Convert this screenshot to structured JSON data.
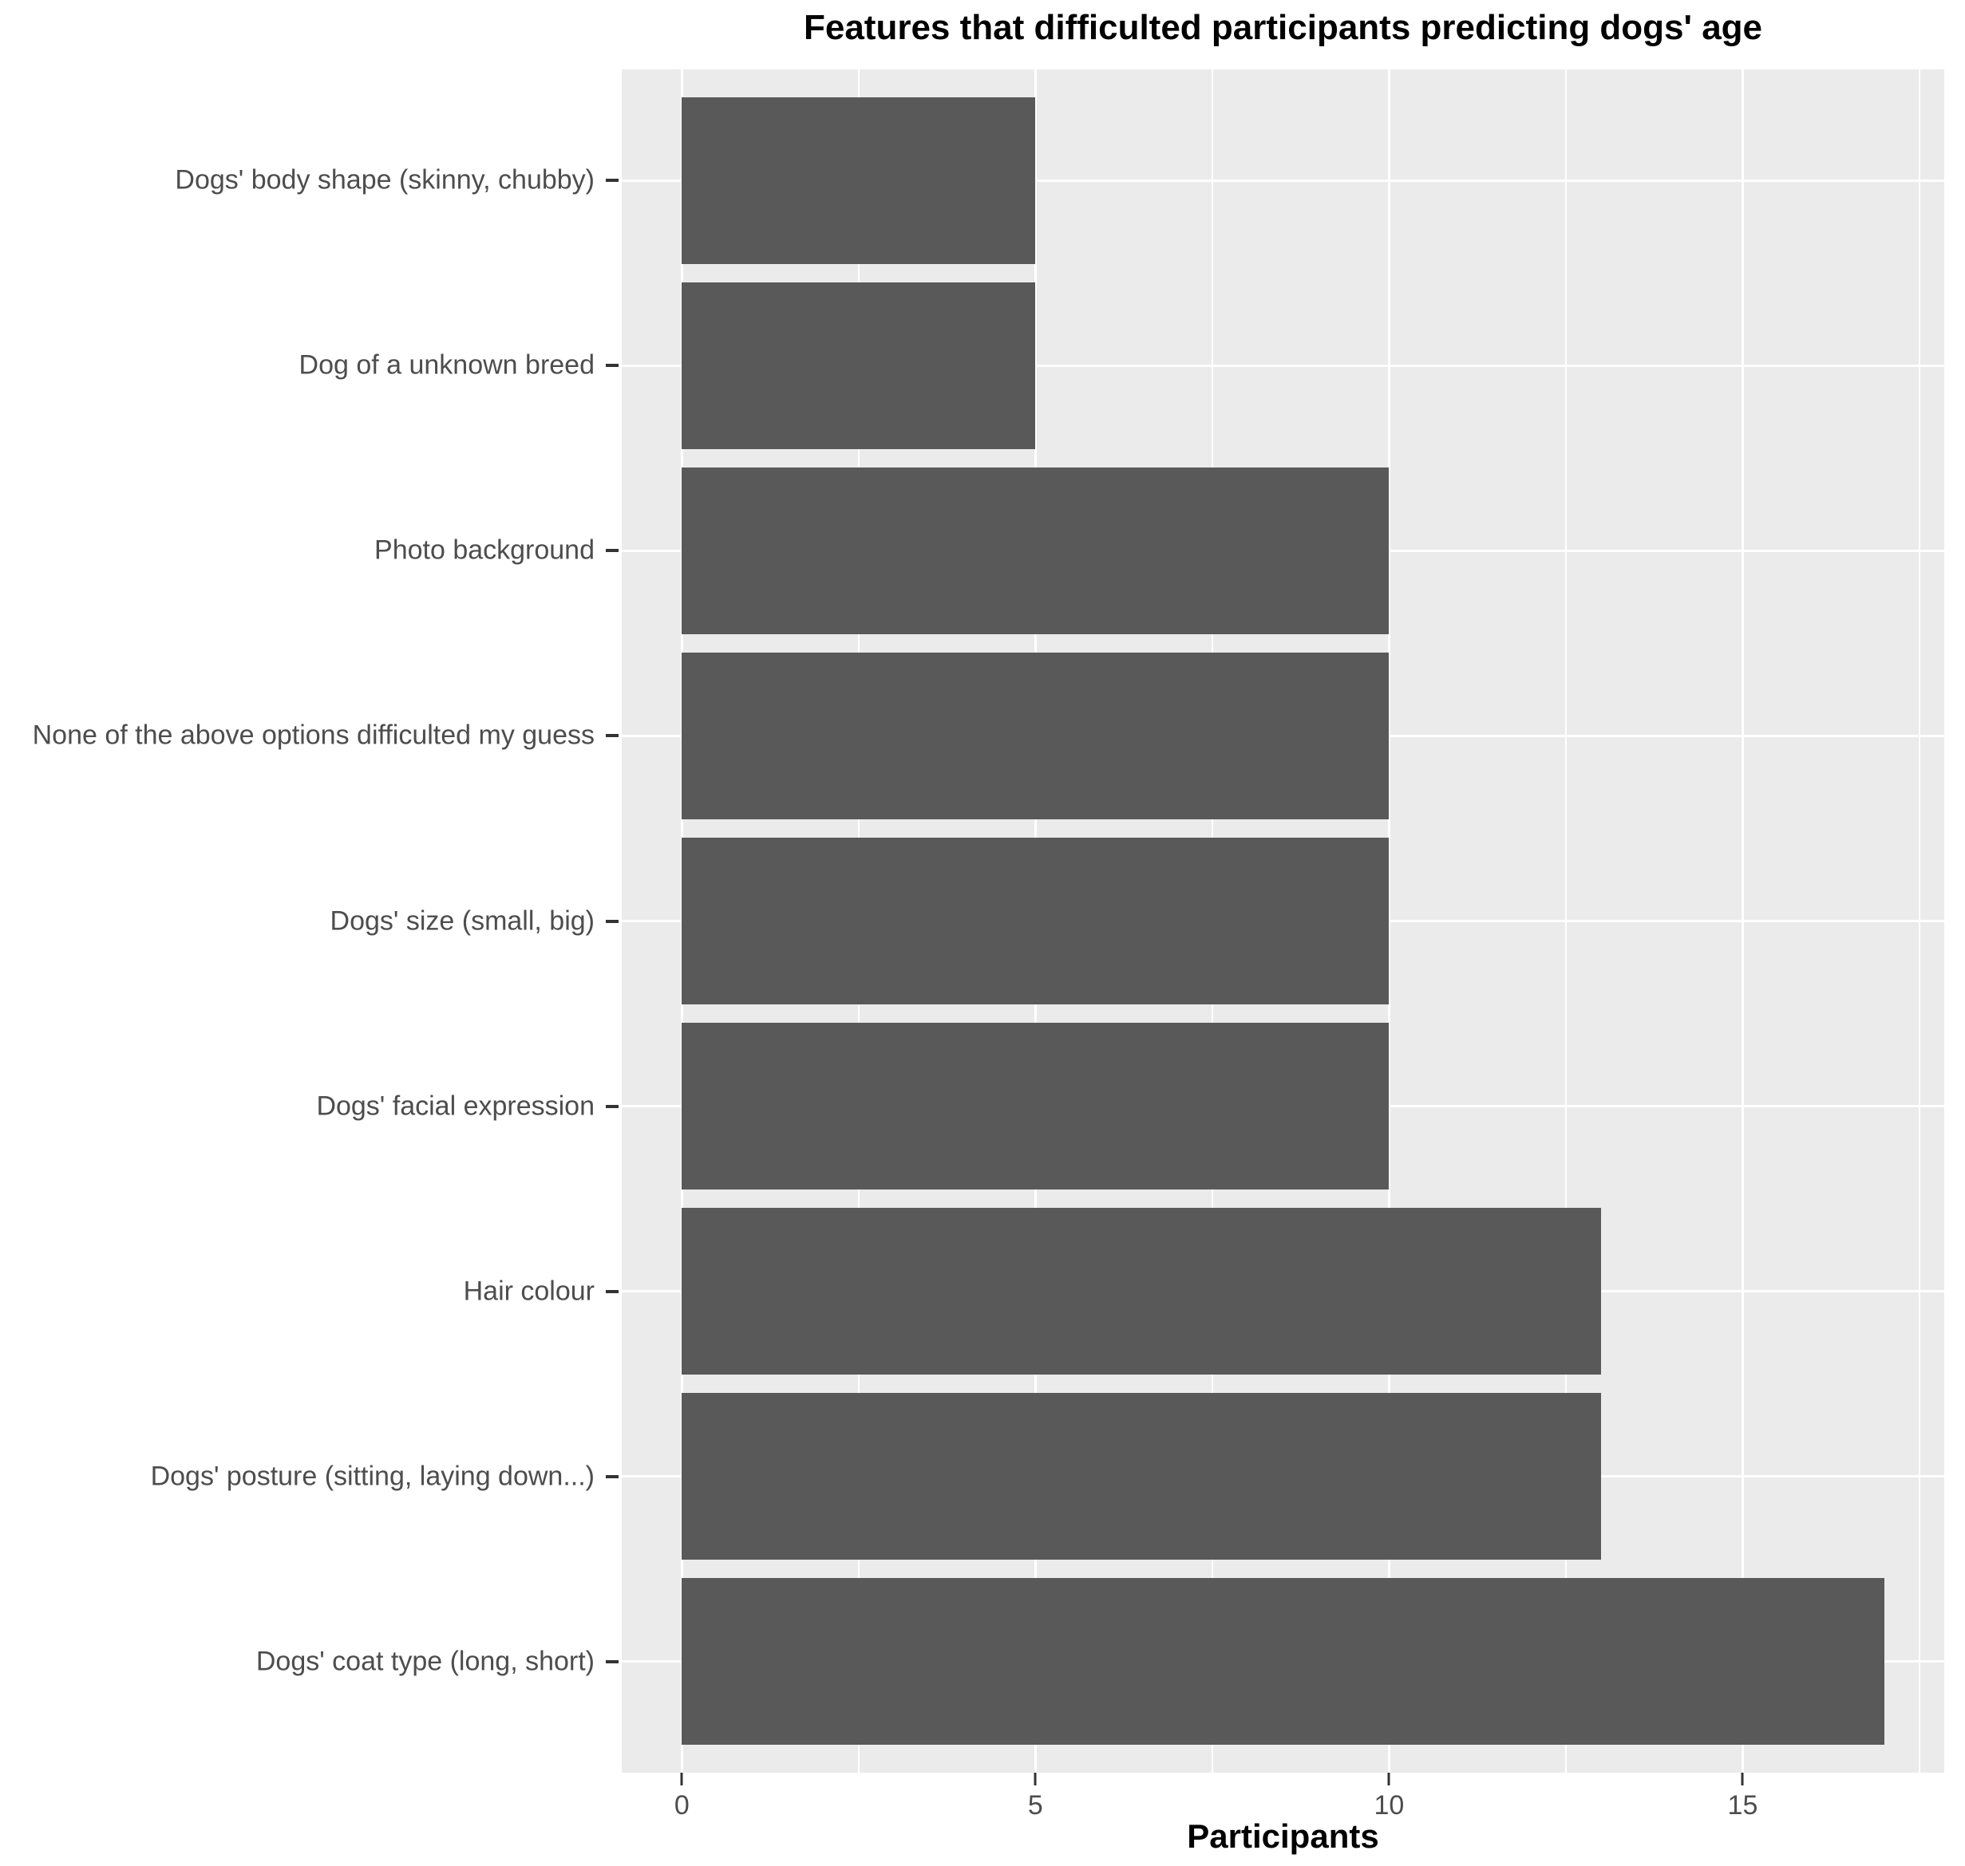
{
  "chart_data": {
    "type": "bar",
    "orientation": "horizontal",
    "title": "Features that difficulted participants predicting dogs' age",
    "xlabel": "Participants",
    "ylabel": "",
    "categories": [
      "Dogs' body shape (skinny, chubby)",
      "Dog of a unknown breed",
      "Photo background",
      "None of the above options difficulted my guess",
      "Dogs' size (small, big)",
      "Dogs' facial expression",
      "Hair colour",
      "Dogs' posture (sitting, laying down...)",
      "Dogs' coat type (long, short)"
    ],
    "values": [
      5,
      5,
      10,
      10,
      10,
      10,
      13,
      13,
      17
    ],
    "x_ticks": [
      0,
      5,
      10,
      15
    ],
    "x_tick_labels": [
      "0",
      "5",
      "10",
      "15"
    ],
    "x_minor_ticks": [
      2.5,
      7.5,
      12.5,
      17.5
    ],
    "xlim": [
      -0.85,
      17.85
    ],
    "grid": true,
    "legend_position": "none",
    "colors": {
      "bar": "#595959",
      "panel_background": "#EBEBEB",
      "gridline": "#FFFFFF",
      "axis_text": "#4D4D4D",
      "tick_mark": "#333333",
      "title_text": "#000000"
    }
  }
}
